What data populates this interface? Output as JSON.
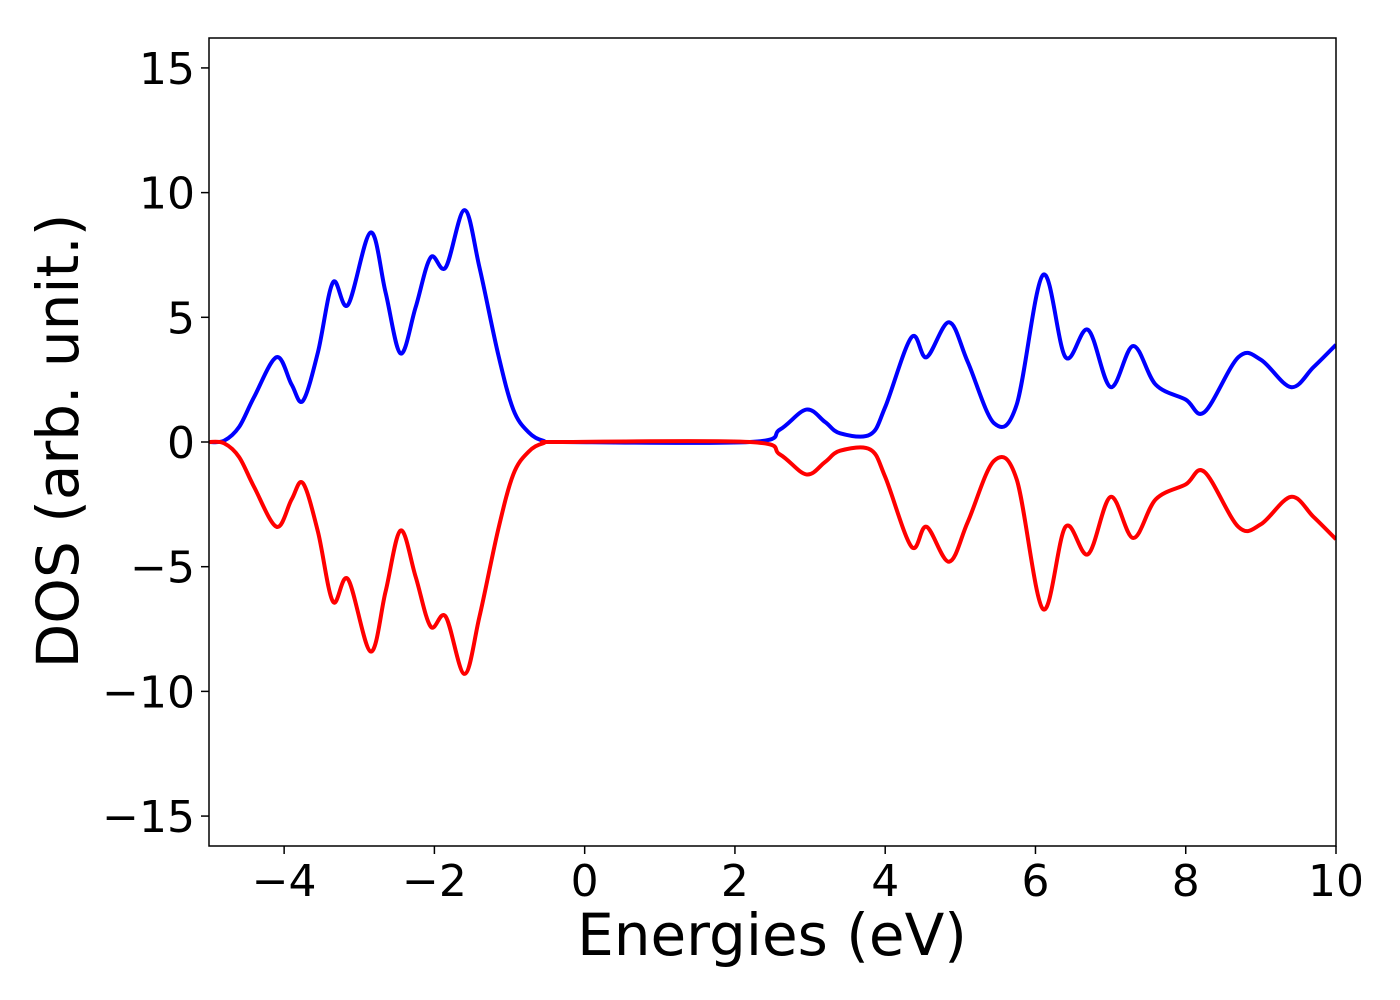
{
  "chart_data": {
    "type": "line",
    "xlabel": "Energies (eV)",
    "ylabel": "DOS (arb. unit.)",
    "x": [
      -5,
      -4.8,
      -4.6,
      -4.4,
      -4.1,
      -3.9,
      -3.75,
      -3.55,
      -3.35,
      -3.15,
      -2.85,
      -2.65,
      -2.45,
      -2.25,
      -2.05,
      -1.85,
      -1.6,
      -1.4,
      -1.15,
      -0.95,
      -0.75,
      -0.55,
      -0.3,
      2.2,
      2.6,
      2.95,
      3.2,
      3.4,
      3.8,
      4.0,
      4.35,
      4.55,
      4.85,
      5.1,
      5.45,
      5.75,
      6.1,
      6.4,
      6.7,
      7.0,
      7.3,
      7.6,
      8.0,
      8.25,
      8.7,
      9.0,
      9.4,
      9.7,
      10
    ],
    "series": [
      {
        "color": "#0000ff",
        "values": [
          0,
          0.05,
          0.6,
          1.8,
          3.4,
          2.3,
          1.65,
          3.6,
          6.4,
          5.5,
          8.4,
          6,
          3.55,
          5.4,
          7.4,
          7.0,
          9.3,
          7,
          3.5,
          1.3,
          0.4,
          0.05,
          0,
          0,
          0.5,
          1.3,
          0.8,
          0.35,
          0.3,
          1.4,
          4.2,
          3.4,
          4.8,
          3.2,
          0.75,
          1.5,
          6.7,
          3.4,
          4.5,
          2.2,
          3.85,
          2.3,
          1.7,
          1.2,
          3.4,
          3.3,
          2.2,
          3,
          3.9
        ]
      },
      {
        "color": "#ff0000",
        "values": [
          0,
          -0.05,
          -0.6,
          -1.8,
          -3.4,
          -2.3,
          -1.65,
          -3.6,
          -6.4,
          -5.5,
          -8.4,
          -6,
          -3.55,
          -5.4,
          -7.4,
          -7.0,
          -9.3,
          -7,
          -3.5,
          -1.3,
          -0.4,
          -0.05,
          0,
          0,
          -0.5,
          -1.3,
          -0.8,
          -0.35,
          -0.3,
          -1.4,
          -4.2,
          -3.4,
          -4.8,
          -3.2,
          -0.75,
          -1.5,
          -6.7,
          -3.4,
          -4.5,
          -2.2,
          -3.85,
          -2.3,
          -1.7,
          -1.2,
          -3.4,
          -3.3,
          -2.2,
          -3,
          -3.9
        ]
      }
    ],
    "xlim": [
      -5,
      10
    ],
    "xticks": [
      {
        "value": -4,
        "label": "−4"
      },
      {
        "value": -2,
        "label": "−2"
      },
      0,
      2,
      4,
      6,
      8,
      10
    ],
    "ylim": [
      -16.2,
      16.2
    ],
    "yticks": [
      {
        "value": -15,
        "label": "−15"
      },
      {
        "value": -10,
        "label": "−10"
      },
      {
        "value": -5,
        "label": "−5"
      },
      0,
      5,
      10,
      15
    ],
    "grid": false
  }
}
